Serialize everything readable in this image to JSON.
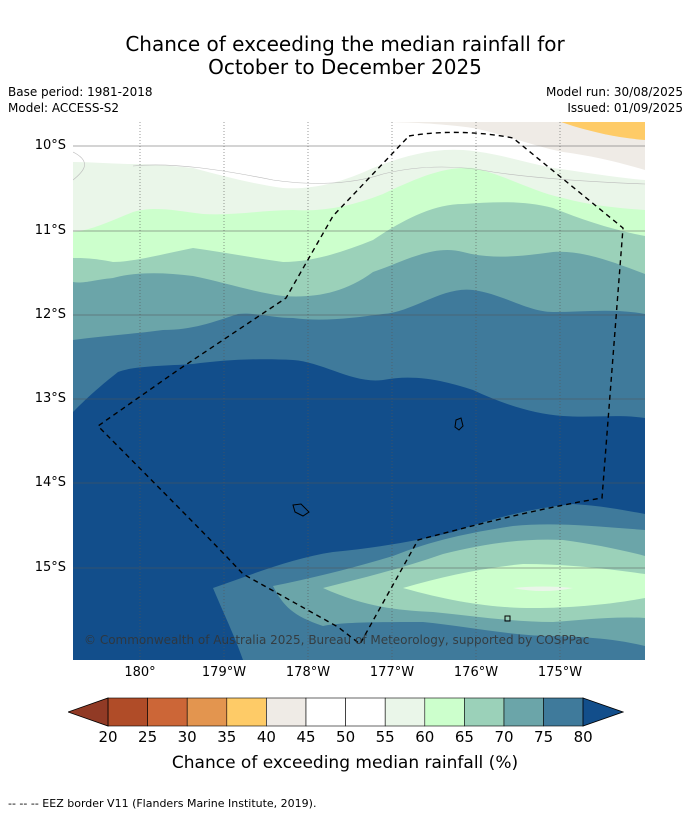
{
  "title": {
    "line1": "Chance of exceeding the median rainfall for",
    "line2": "October to December 2025"
  },
  "meta": {
    "base_period": "Base period: 1981-2018",
    "model": "Model: ACCESS-S2",
    "model_run": "Model run: 30/08/2025",
    "issued": "Issued: 01/09/2025"
  },
  "map": {
    "lat_labels": [
      "10°S",
      "11°S",
      "12°S",
      "13°S",
      "14°S",
      "15°S"
    ],
    "lon_labels": [
      "180°",
      "179°W",
      "178°W",
      "177°W",
      "176°W",
      "175°W"
    ],
    "copyright": "© Commonwealth of Australia 2025, Bureau of Meteorology, supported by COSPPac"
  },
  "colorbar": {
    "labels": [
      "20",
      "25",
      "30",
      "35",
      "40",
      "45",
      "50",
      "55",
      "60",
      "65",
      "70",
      "75",
      "80"
    ],
    "colors": [
      "#b04c28",
      "#cc6637",
      "#e3954f",
      "#fecb67",
      "#efebe6",
      "#ffffff",
      "#ffffff",
      "#eaf6e9",
      "#ccffcc",
      "#9bd1b9",
      "#6ba5a9",
      "#3f7a9b"
    ],
    "low_color": "#913a25",
    "high_color": "#124e8b",
    "title": "Chance of exceeding median rainfall (%)"
  },
  "footer": "--  --  -- EEZ border V11 (Flanders Marine Institute, 2019)."
}
